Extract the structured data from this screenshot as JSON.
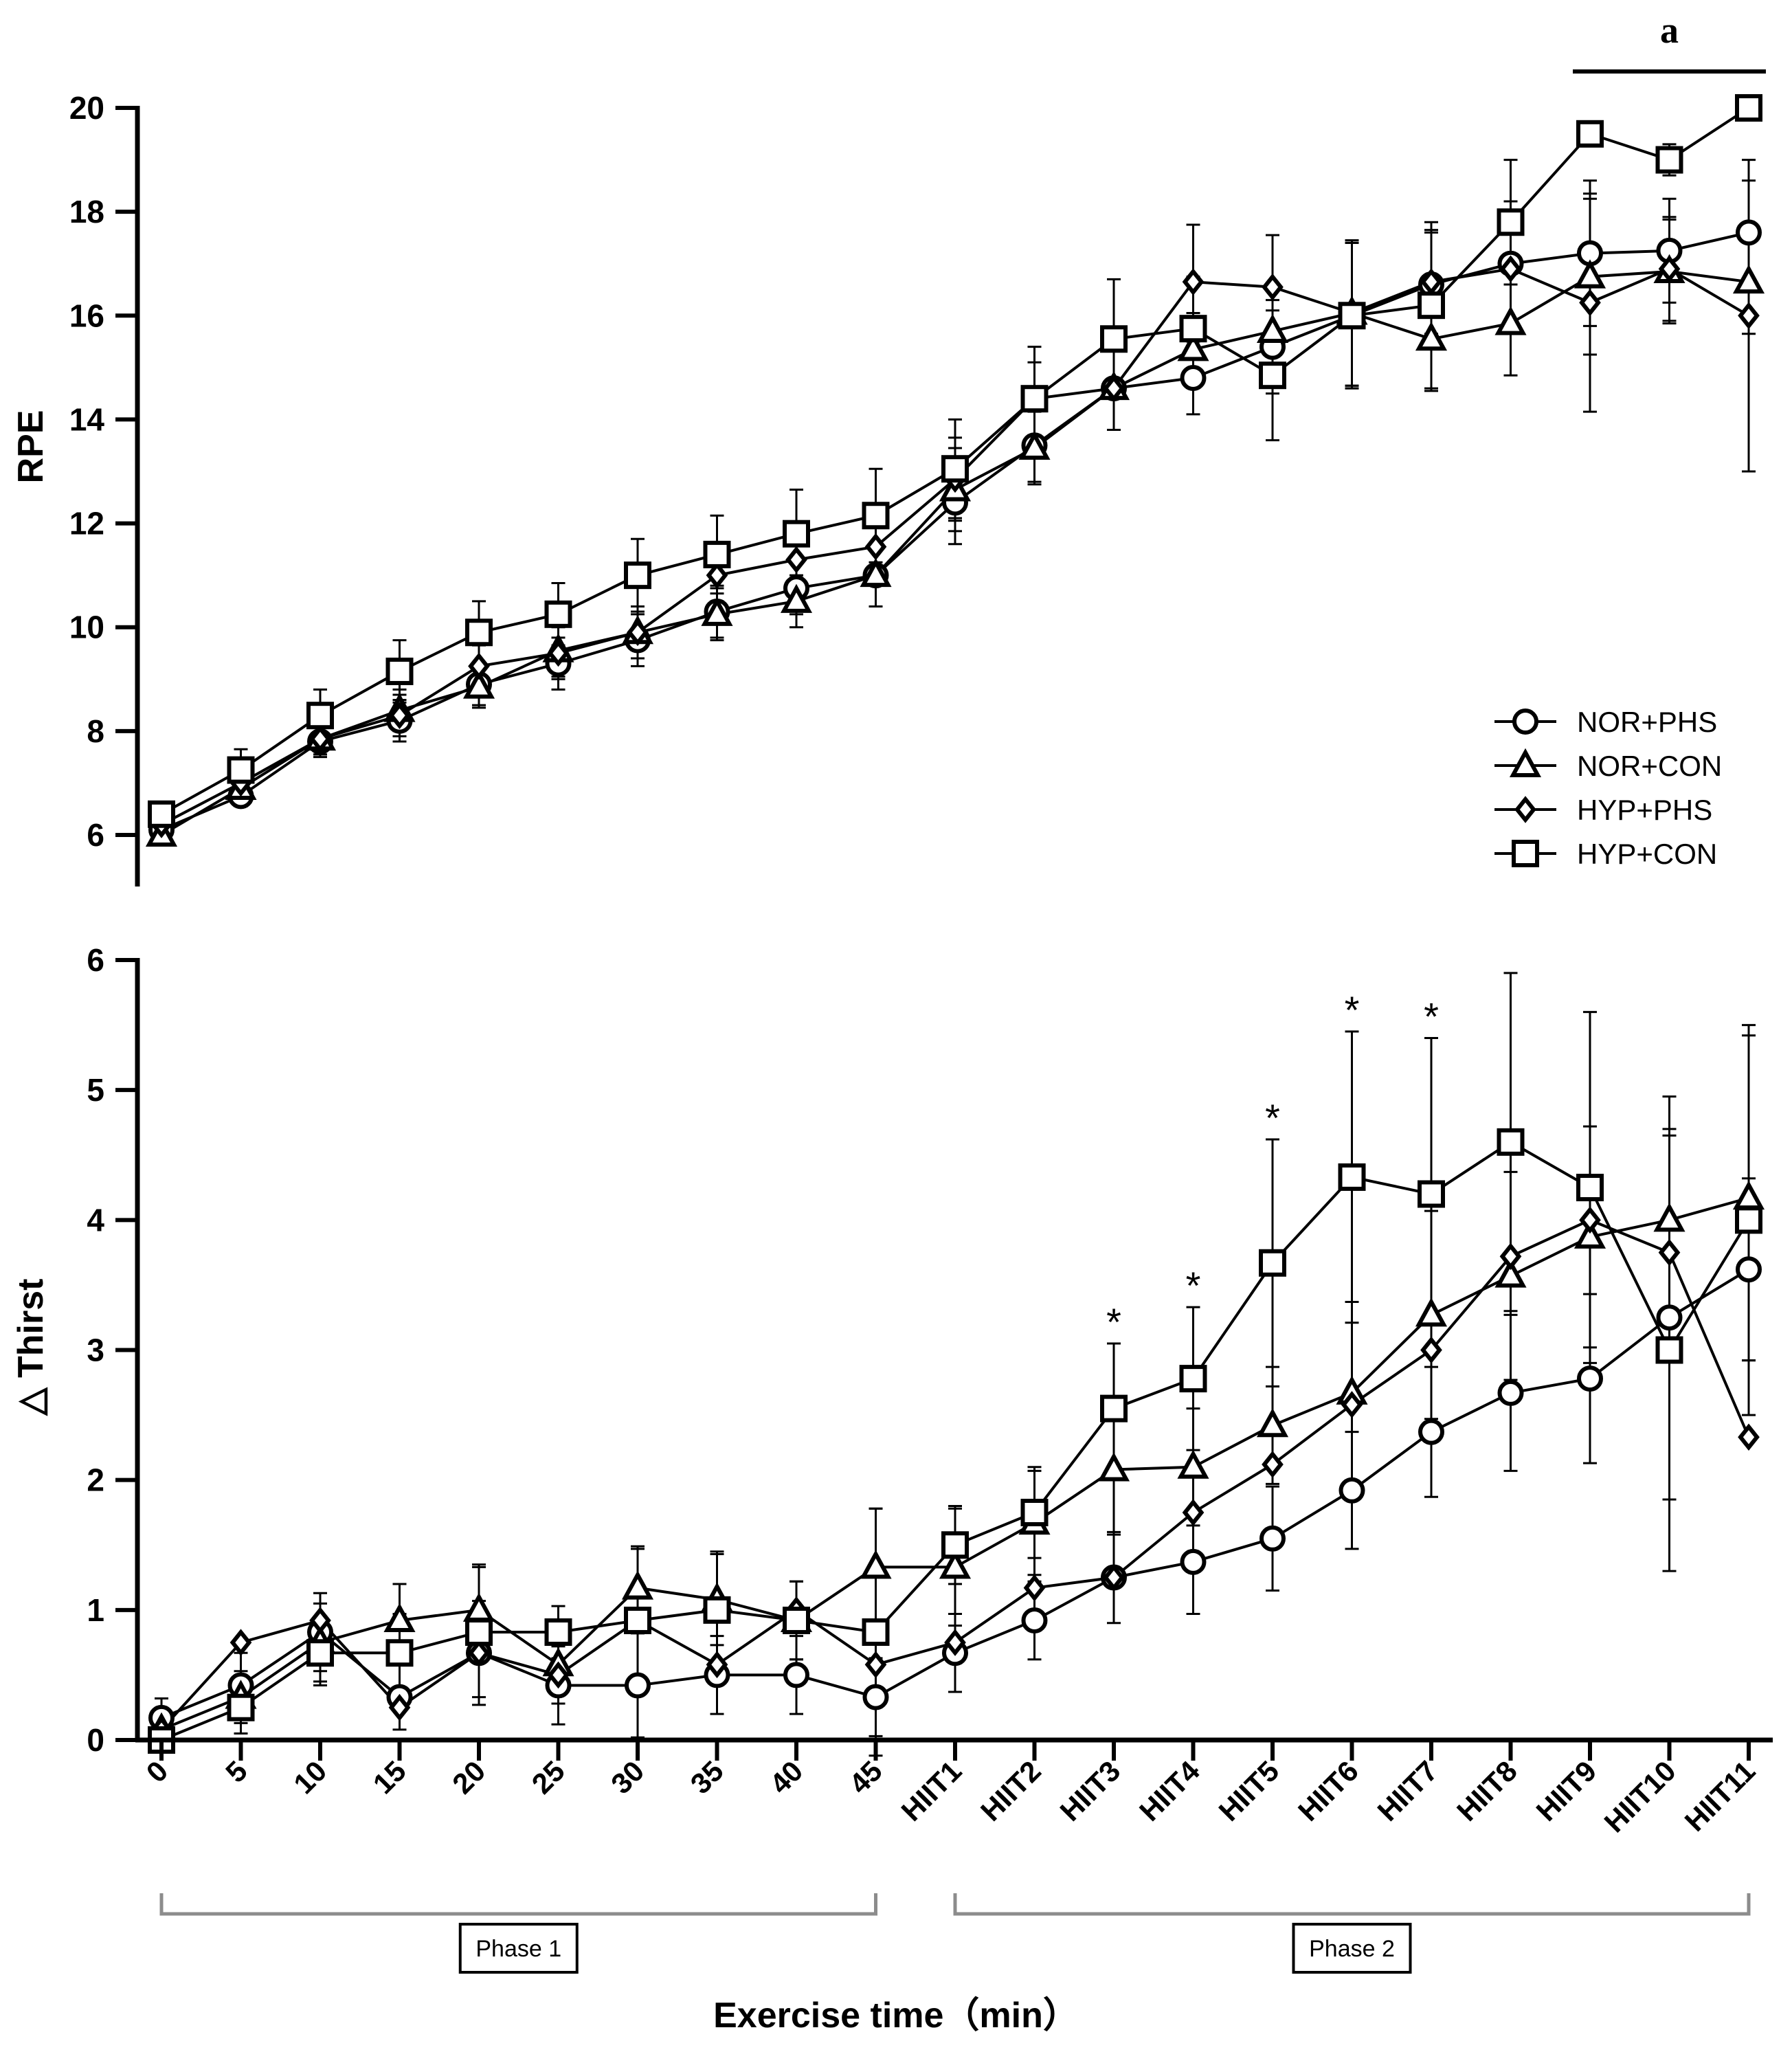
{
  "chart_data": [
    {
      "type": "line",
      "id": "rpe",
      "ylabel": "RPE",
      "ylim": [
        5,
        20
      ],
      "yticks": [
        6,
        8,
        10,
        12,
        14,
        16,
        18,
        20
      ],
      "categories": [
        "0",
        "5",
        "10",
        "15",
        "20",
        "25",
        "30",
        "35",
        "40",
        "45",
        "HIIT1",
        "HIIT2",
        "HIIT3",
        "HIIT4",
        "HIIT5",
        "HIIT6",
        "HIIT7",
        "HIIT8",
        "HIIT9",
        "HIIT10",
        "HIIT11"
      ],
      "significance": {
        "label": "a",
        "from_index": 18,
        "to_index": 20
      },
      "series": [
        {
          "name": "NOR+PHS",
          "marker": "circle",
          "values": [
            6.1,
            6.75,
            7.8,
            8.2,
            8.9,
            9.3,
            9.75,
            10.3,
            10.75,
            11.0,
            12.4,
            13.5,
            14.6,
            14.8,
            15.4,
            16.0,
            16.6,
            17.0,
            17.2,
            17.25,
            17.6
          ],
          "errors": [
            0.2,
            0.2,
            0.3,
            0.4,
            0.4,
            0.5,
            0.5,
            0.5,
            0.5,
            0.6,
            0.8,
            0.7,
            0.8,
            0.7,
            0.9,
            1.4,
            1.0,
            1.2,
            1.4,
            1.0,
            1.0
          ]
        },
        {
          "name": "NOR+CON",
          "marker": "triangle",
          "values": [
            6.0,
            6.9,
            7.85,
            8.4,
            8.85,
            9.55,
            9.9,
            10.25,
            10.5,
            11.0,
            12.65,
            13.45,
            14.6,
            15.35,
            15.7,
            16.05,
            15.55,
            15.85,
            16.75,
            16.85,
            16.65
          ],
          "errors": [
            0.2,
            0.2,
            0.3,
            0.4,
            0.4,
            0.5,
            0.5,
            0.5,
            0.5,
            0.6,
            0.8,
            0.7,
            0.8,
            0.7,
            0.9,
            1.4,
            1.0,
            1.0,
            1.5,
            1.0,
            1.0
          ]
        },
        {
          "name": "HYP+PHS",
          "marker": "diamond",
          "values": [
            6.2,
            7.0,
            7.85,
            8.3,
            9.25,
            9.5,
            9.9,
            11.0,
            11.3,
            11.55,
            12.85,
            14.4,
            14.6,
            16.65,
            16.55,
            16.05,
            16.65,
            16.9,
            16.25,
            16.9,
            16.0
          ],
          "errors": [
            0.2,
            0.2,
            0.3,
            0.4,
            0.4,
            0.5,
            0.5,
            0.5,
            0.5,
            0.6,
            0.8,
            0.7,
            0.8,
            1.1,
            1.0,
            1.4,
            1.0,
            1.0,
            2.1,
            1.0,
            3.0
          ]
        },
        {
          "name": "HYP+CON",
          "marker": "square",
          "values": [
            6.4,
            7.25,
            8.3,
            9.15,
            9.9,
            10.25,
            11.0,
            11.4,
            11.8,
            12.15,
            13.05,
            14.4,
            15.55,
            15.75,
            14.85,
            16.0,
            16.2,
            17.8,
            19.5,
            19.0,
            20.0
          ],
          "errors": [
            0.2,
            0.4,
            0.5,
            0.6,
            0.6,
            0.6,
            0.7,
            0.75,
            0.85,
            0.9,
            0.95,
            1.0,
            1.15,
            1.0,
            1.25,
            1.4,
            1.6,
            1.2,
            0.2,
            0.3,
            0.0
          ]
        }
      ],
      "legend": [
        "NOR+PHS",
        "NOR+CON",
        "HYP+PHS",
        "HYP+CON"
      ]
    },
    {
      "type": "line",
      "id": "thirst",
      "ylabel": "△ Thirst",
      "xlabel": "Exercise time（min）",
      "ylim": [
        0,
        6
      ],
      "yticks": [
        0,
        1,
        2,
        3,
        4,
        5,
        6
      ],
      "categories": [
        "0",
        "5",
        "10",
        "15",
        "20",
        "25",
        "30",
        "35",
        "40",
        "45",
        "HIIT1",
        "HIIT2",
        "HIIT3",
        "HIIT4",
        "HIIT5",
        "HIIT6",
        "HIIT7",
        "HIIT8",
        "HIIT9",
        "HIIT10",
        "HIIT11"
      ],
      "significance": {
        "label": "*",
        "indices": [
          12,
          13,
          14,
          15,
          16
        ]
      },
      "series": [
        {
          "name": "NOR+PHS",
          "marker": "circle",
          "values": [
            0.17,
            0.42,
            0.83,
            0.33,
            0.67,
            0.42,
            0.42,
            0.5,
            0.5,
            0.33,
            0.67,
            0.92,
            1.25,
            1.37,
            1.55,
            1.92,
            2.37,
            2.67,
            2.78,
            3.25,
            3.62
          ],
          "errors": [
            0.15,
            0.25,
            0.3,
            0.25,
            0.4,
            0.3,
            0.4,
            0.3,
            0.3,
            0.3,
            0.3,
            0.3,
            0.35,
            0.4,
            0.4,
            0.45,
            0.5,
            0.6,
            0.65,
            1.4,
            0.7
          ]
        },
        {
          "name": "NOR+CON",
          "marker": "triangle",
          "values": [
            0.08,
            0.33,
            0.75,
            0.92,
            1.0,
            0.58,
            1.17,
            1.08,
            0.92,
            1.33,
            1.33,
            1.67,
            2.08,
            2.1,
            2.42,
            2.67,
            3.27,
            3.57,
            3.87,
            4.0,
            4.17
          ],
          "errors": [
            0.1,
            0.2,
            0.3,
            0.28,
            0.35,
            0.3,
            0.32,
            0.35,
            0.3,
            0.45,
            0.45,
            0.4,
            0.5,
            0.45,
            0.45,
            0.7,
            0.8,
            0.8,
            0.85,
            0.95,
            1.25
          ]
        },
        {
          "name": "HYP+PHS",
          "marker": "diamond",
          "values": [
            0.08,
            0.75,
            0.92,
            0.25,
            0.67,
            0.5,
            0.92,
            0.58,
            1.0,
            0.58,
            0.75,
            1.17,
            1.25,
            1.75,
            2.12,
            2.58,
            3.0,
            3.72,
            4.0,
            3.75,
            2.33
          ]
        },
        {
          "name": "HYP+CON",
          "marker": "square",
          "values": [
            0.0,
            0.25,
            0.67,
            0.67,
            0.83,
            0.83,
            0.92,
            1.0,
            0.92,
            0.83,
            1.5,
            1.75,
            2.55,
            2.78,
            3.67,
            4.33,
            4.2,
            4.6,
            4.25,
            3.0,
            4.0
          ],
          "errors": [
            0.05,
            0.2,
            0.25,
            0.3,
            0.5,
            0.2,
            0.55,
            0.45,
            0.3,
            0.95,
            0.3,
            0.35,
            0.5,
            0.55,
            0.95,
            1.12,
            1.2,
            1.3,
            1.35,
            1.7,
            1.5
          ]
        }
      ]
    }
  ],
  "phases": [
    {
      "label": "Phase 1",
      "from_index": 0,
      "to_index": 9
    },
    {
      "label": "Phase 2",
      "from_index": 10,
      "to_index": 20
    }
  ]
}
